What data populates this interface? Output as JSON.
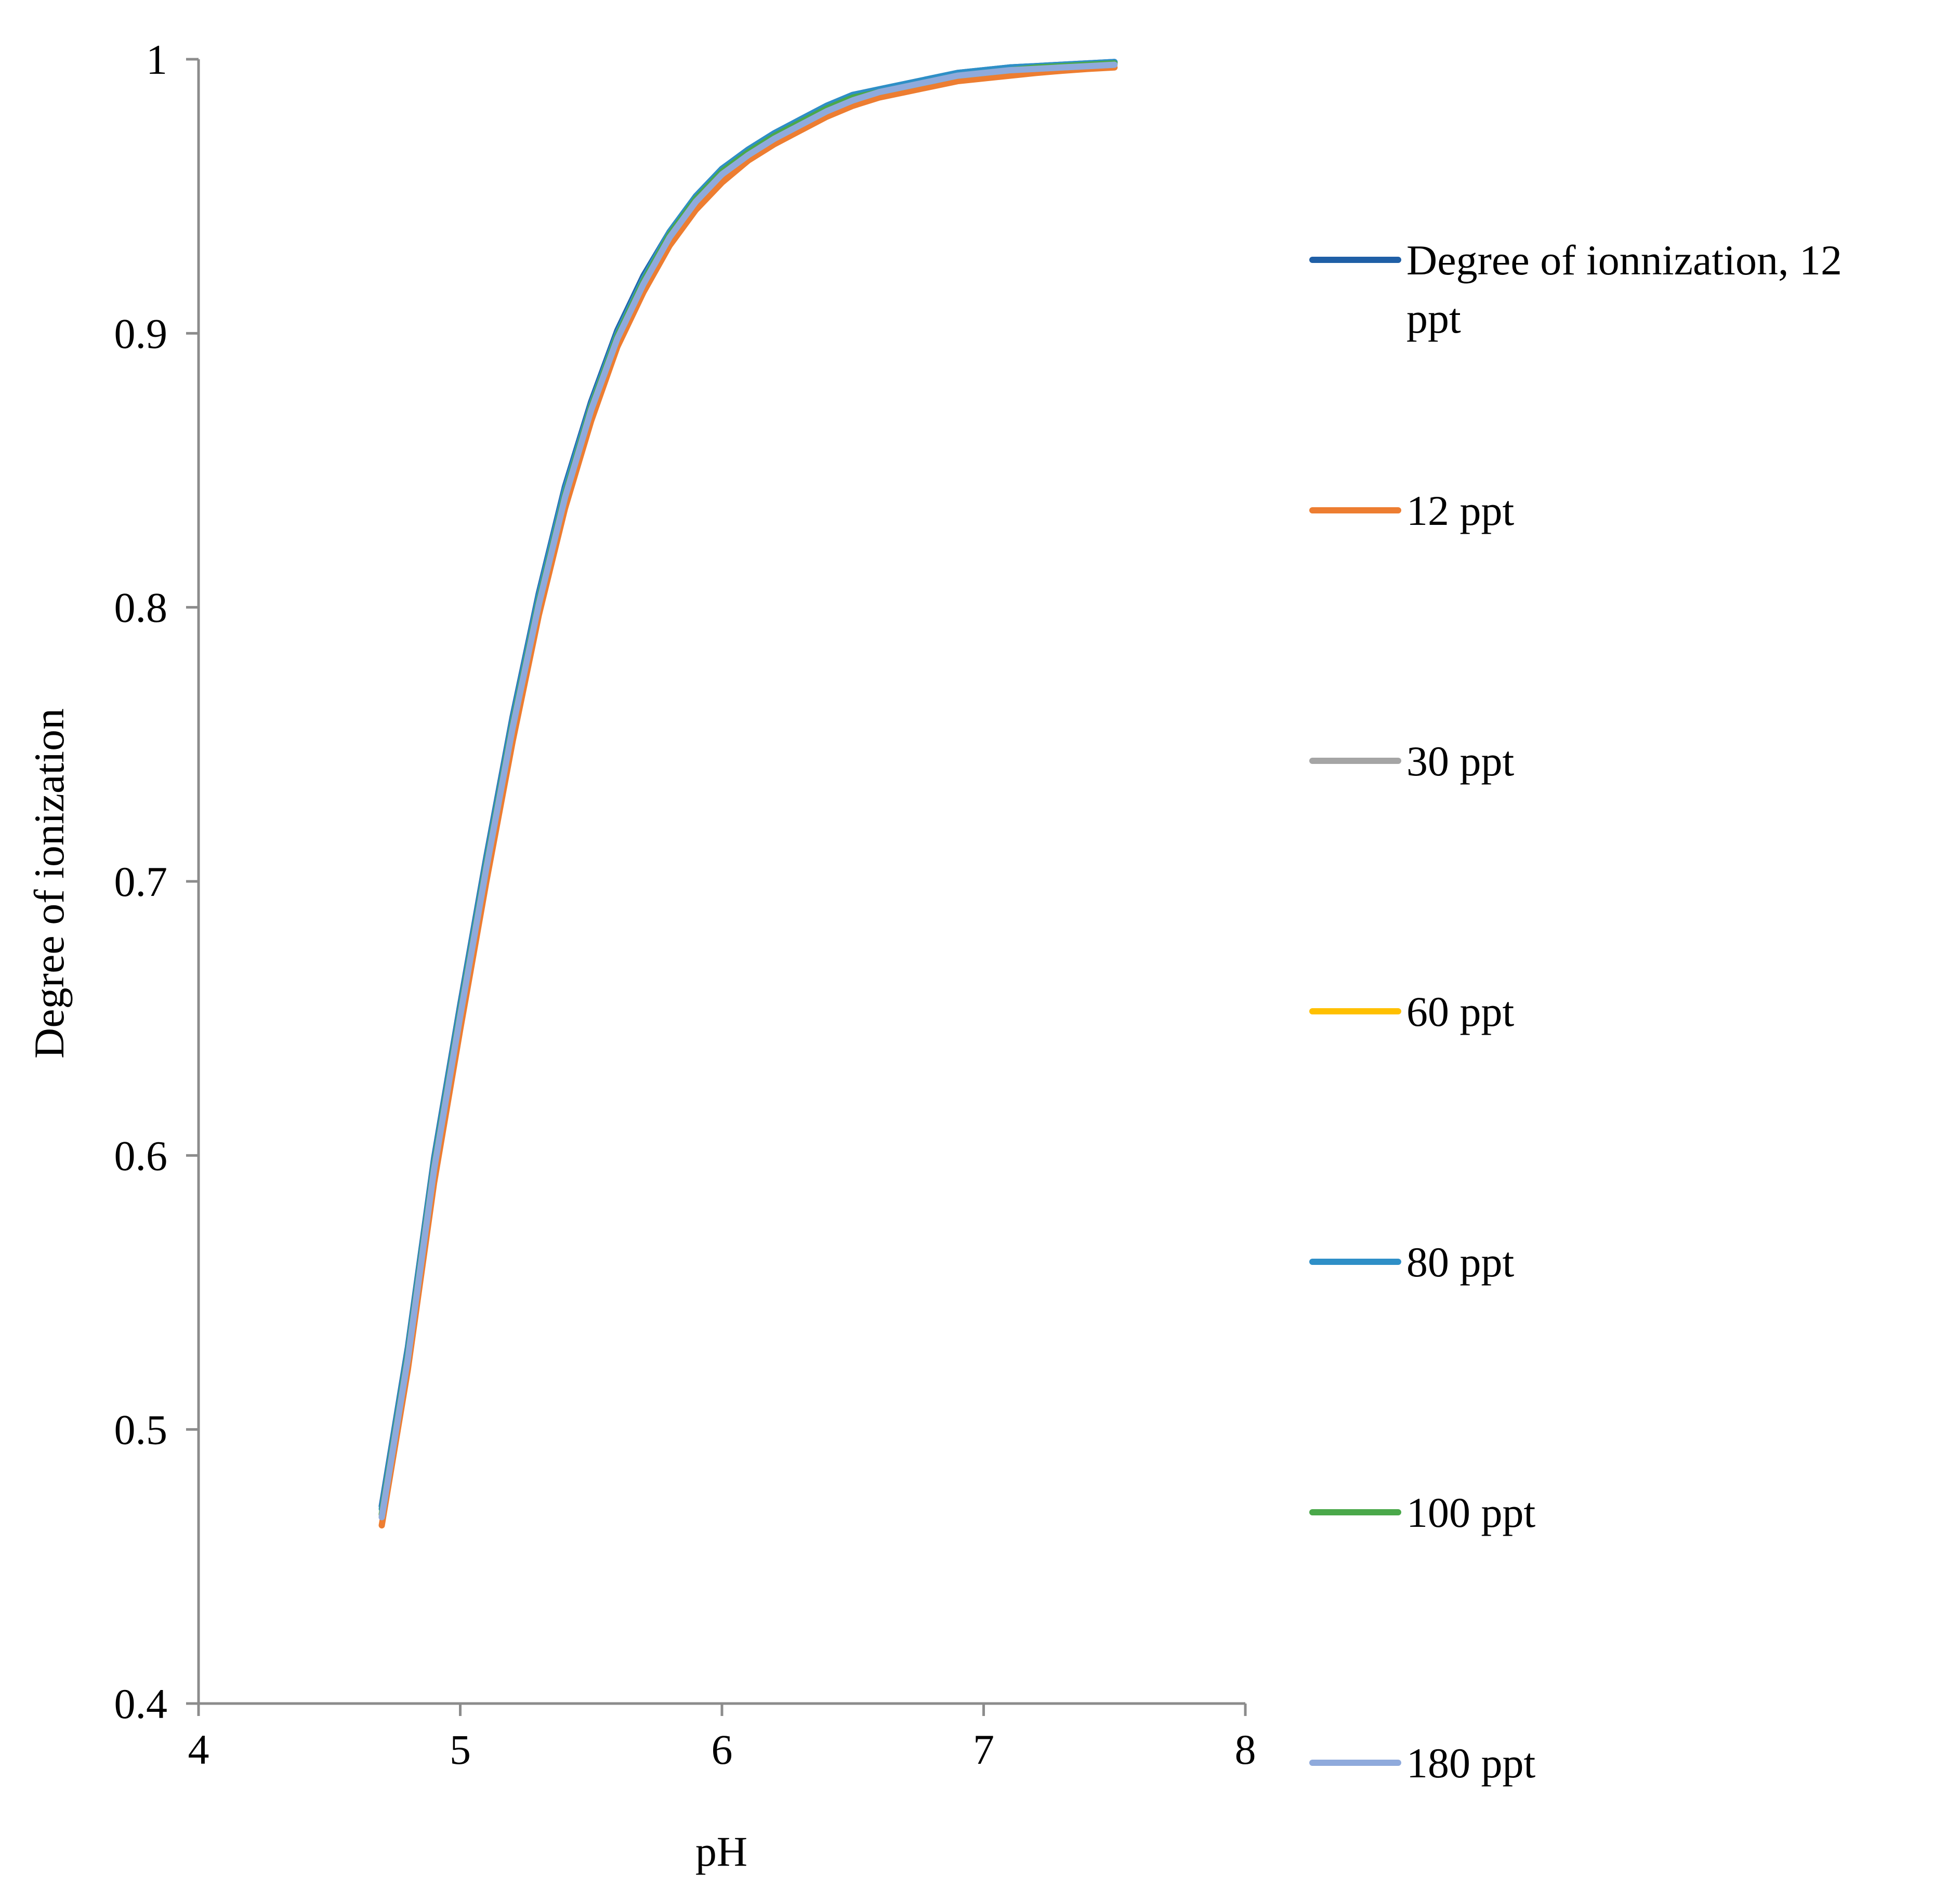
{
  "chart_data": {
    "type": "line",
    "xlabel": "pH",
    "ylabel": "Degree of ionization",
    "xlim": [
      4,
      8
    ],
    "ylim": [
      0.4,
      1
    ],
    "xticks": [
      "4",
      "5",
      "6",
      "7",
      "8"
    ],
    "yticks": [
      "0.4",
      "0.5",
      "0.6",
      "0.7",
      "0.8",
      "0.9",
      "1"
    ],
    "grid": false,
    "legend_position": "right",
    "x": [
      4.7,
      4.8,
      4.9,
      5.0,
      5.1,
      5.2,
      5.3,
      5.4,
      5.5,
      5.6,
      5.7,
      5.8,
      5.9,
      6.0,
      6.1,
      6.2,
      6.3,
      6.4,
      6.5,
      6.6,
      6.7,
      6.8,
      6.9,
      7.0,
      7.1,
      7.2,
      7.3,
      7.4,
      7.5
    ],
    "series": [
      {
        "name": "Degree of ionnization, 12 ppt",
        "color": "#1f5fa6",
        "values": [
          0.472,
          0.53,
          0.599,
          0.655,
          0.709,
          0.76,
          0.805,
          0.844,
          0.875,
          0.901,
          0.921,
          0.937,
          0.95,
          0.96,
          0.967,
          0.973,
          0.978,
          0.983,
          0.987,
          0.989,
          0.991,
          0.993,
          0.995,
          0.996,
          0.997,
          0.9975,
          0.998,
          0.9985,
          0.999
        ]
      },
      {
        "name": "12 ppt",
        "color": "#ed7d31",
        "values": [
          0.465,
          0.522,
          0.59,
          0.646,
          0.7,
          0.751,
          0.797,
          0.836,
          0.868,
          0.895,
          0.915,
          0.932,
          0.945,
          0.955,
          0.963,
          0.969,
          0.974,
          0.979,
          0.983,
          0.986,
          0.988,
          0.99,
          0.992,
          0.993,
          0.994,
          0.995,
          0.9958,
          0.9965,
          0.997
        ]
      },
      {
        "name": "30 ppt",
        "color": "#a5a5a5",
        "values": [
          0.468,
          0.526,
          0.595,
          0.651,
          0.705,
          0.756,
          0.801,
          0.84,
          0.872,
          0.898,
          0.918,
          0.935,
          0.948,
          0.958,
          0.965,
          0.971,
          0.976,
          0.981,
          0.985,
          0.988,
          0.99,
          0.992,
          0.994,
          0.995,
          0.996,
          0.9965,
          0.997,
          0.9975,
          0.998
        ]
      },
      {
        "name": "60 ppt",
        "color": "#ffc000",
        "values": [
          0.469,
          0.527,
          0.596,
          0.652,
          0.706,
          0.757,
          0.802,
          0.841,
          0.873,
          0.899,
          0.919,
          0.936,
          0.949,
          0.959,
          0.966,
          0.972,
          0.977,
          0.982,
          0.986,
          0.988,
          0.99,
          0.992,
          0.994,
          0.995,
          0.996,
          0.997,
          0.9975,
          0.998,
          0.9985
        ]
      },
      {
        "name": "80 ppt",
        "color": "#2e8fc7",
        "values": [
          0.471,
          0.529,
          0.598,
          0.654,
          0.708,
          0.759,
          0.804,
          0.843,
          0.874,
          0.9,
          0.92,
          0.937,
          0.95,
          0.96,
          0.967,
          0.973,
          0.978,
          0.983,
          0.987,
          0.989,
          0.991,
          0.993,
          0.995,
          0.996,
          0.997,
          0.9975,
          0.998,
          0.9985,
          0.999
        ]
      },
      {
        "name": "100 ppt",
        "color": "#4aa84a",
        "values": [
          0.469,
          0.527,
          0.596,
          0.652,
          0.706,
          0.757,
          0.802,
          0.841,
          0.873,
          0.899,
          0.919,
          0.936,
          0.949,
          0.959,
          0.966,
          0.972,
          0.977,
          0.982,
          0.986,
          0.988,
          0.99,
          0.992,
          0.994,
          0.995,
          0.996,
          0.997,
          0.9975,
          0.998,
          0.9985
        ]
      },
      {
        "name": "180 ppt",
        "color": "#8faadc",
        "values": [
          0.468,
          0.526,
          0.595,
          0.651,
          0.705,
          0.756,
          0.801,
          0.84,
          0.872,
          0.898,
          0.918,
          0.935,
          0.948,
          0.958,
          0.965,
          0.971,
          0.976,
          0.981,
          0.985,
          0.988,
          0.99,
          0.992,
          0.994,
          0.995,
          0.996,
          0.9965,
          0.997,
          0.9975,
          0.998
        ]
      }
    ]
  }
}
